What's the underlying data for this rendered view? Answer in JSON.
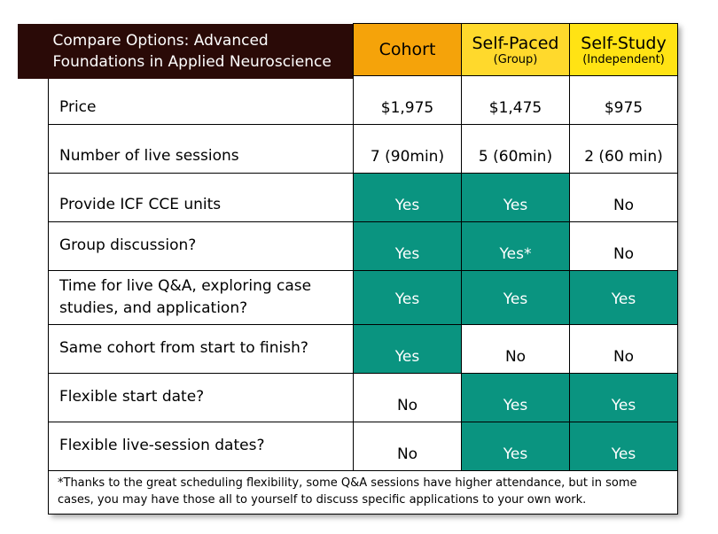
{
  "title": "Compare Options: Advanced Foundations in Applied Neuroscience",
  "title_line1": "Compare Options: Advanced",
  "title_line2": "Foundations in Applied Neuroscience",
  "colors": {
    "title_bg": "#2a0a07",
    "cohort_header": "#f5a30a",
    "selfpaced_header": "#ffd92c",
    "selfstudy_header": "#ffe314",
    "highlight": "#0a9480",
    "highlight_text": "#ffffff"
  },
  "columns": [
    {
      "name": "Cohort",
      "sub": ""
    },
    {
      "name": "Self-Paced",
      "sub": "(Group)"
    },
    {
      "name": "Self-Study",
      "sub": "(Independent)"
    }
  ],
  "rows": [
    {
      "label": "Price",
      "values": [
        "$1,975",
        "$1,475",
        "$975"
      ],
      "highlight": [
        false,
        false,
        false
      ]
    },
    {
      "label": "Number of live sessions",
      "values": [
        "7 (90min)",
        "5 (60min)",
        "2 (60 min)"
      ],
      "highlight": [
        false,
        false,
        false
      ]
    },
    {
      "label": "Provide ICF CCE units",
      "values": [
        "Yes",
        "Yes",
        "No"
      ],
      "highlight": [
        true,
        true,
        false
      ]
    },
    {
      "label": "Group discussion?",
      "values": [
        "Yes",
        "Yes*",
        "No"
      ],
      "highlight": [
        true,
        true,
        false
      ]
    },
    {
      "label_line1": "Time for live Q&A, exploring case",
      "label_line2": "studies, and application?",
      "values": [
        "Yes",
        "Yes",
        "Yes"
      ],
      "highlight": [
        true,
        true,
        true
      ]
    },
    {
      "label": "Same cohort from start to finish?",
      "values": [
        "Yes",
        "No",
        "No"
      ],
      "highlight": [
        true,
        false,
        false
      ]
    },
    {
      "label": "Flexible start date?",
      "values": [
        "No",
        "Yes",
        "Yes"
      ],
      "highlight": [
        false,
        true,
        true
      ]
    },
    {
      "label": "Flexible live-session dates?",
      "values": [
        "No",
        "Yes",
        "Yes"
      ],
      "highlight": [
        false,
        true,
        true
      ]
    }
  ],
  "footnote": "*Thanks to the great scheduling flexibility, some Q&A sessions have higher attendance, but in some cases, you may have those all to yourself to discuss specific applications to your own work."
}
